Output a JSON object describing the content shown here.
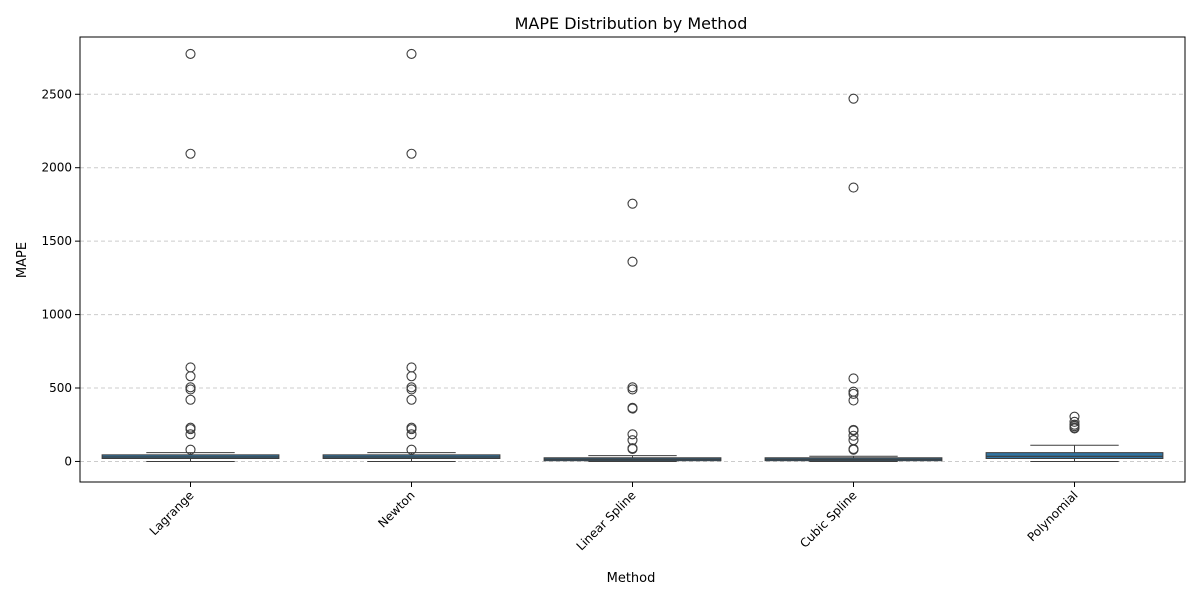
{
  "chart_data": {
    "type": "box",
    "title": "MAPE Distribution by Method",
    "xlabel": "Method",
    "ylabel": "MAPE",
    "ylim": [
      -140,
      2890
    ],
    "yticks": [
      0,
      500,
      1000,
      1500,
      2000,
      2500
    ],
    "grid": "horizontal-dashed",
    "box_color": "#3274a1",
    "categories": [
      "Lagrange",
      "Newton",
      "Linear Spline",
      "Cubic Spline",
      "Polynomial"
    ],
    "boxes": [
      {
        "category": "Lagrange",
        "whisker_low": 0,
        "q1": 20,
        "median": 30,
        "q3": 45,
        "whisker_high": 60,
        "outliers": [
          2775,
          2095,
          640,
          580,
          505,
          490,
          420,
          230,
          220,
          185,
          80
        ]
      },
      {
        "category": "Newton",
        "whisker_low": 0,
        "q1": 20,
        "median": 30,
        "q3": 45,
        "whisker_high": 60,
        "outliers": [
          2775,
          2095,
          640,
          580,
          505,
          490,
          420,
          230,
          220,
          185,
          80
        ]
      },
      {
        "category": "Linear Spline",
        "whisker_low": 0,
        "q1": 5,
        "median": 15,
        "q3": 25,
        "whisker_high": 40,
        "outliers": [
          1755,
          1360,
          505,
          490,
          365,
          360,
          185,
          145,
          90,
          85
        ]
      },
      {
        "category": "Cubic Spline",
        "whisker_low": 0,
        "q1": 5,
        "median": 15,
        "q3": 25,
        "whisker_high": 35,
        "outliers": [
          2470,
          1865,
          565,
          475,
          460,
          415,
          215,
          210,
          175,
          145,
          85,
          80
        ]
      },
      {
        "category": "Polynomial",
        "whisker_low": 0,
        "q1": 20,
        "median": 35,
        "q3": 60,
        "whisker_high": 110,
        "outliers": [
          305,
          270,
          250,
          240,
          230,
          225
        ]
      }
    ]
  }
}
